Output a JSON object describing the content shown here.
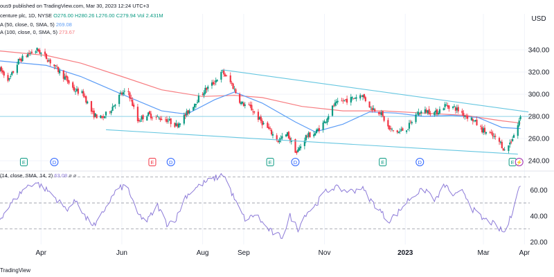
{
  "header": {
    "published_line": "ous9 published on TradingView.com, Mar 30, 2023 12:24 UTC+3",
    "symbol_line": "centure plc, 1D, NYSE",
    "ohlc": {
      "O": "O276.00",
      "H": "H280.26",
      "L": "L276.00",
      "C": "C279.94",
      "Vol": "Vol 2.431M"
    },
    "ma50_label": "A (50, close, 0, SMA, 5)",
    "ma50_value": "269.08",
    "ma100_label": "A (100, close, 0, SMA, 5)",
    "ma100_value": "273.67",
    "rsi_label": "(14, close, SMA, 14, 2)",
    "rsi_value": "63.08",
    "rsi_extra": "ø ø"
  },
  "footer": {
    "brand": "TradingView"
  },
  "colors": {
    "up": "#089981",
    "down": "#f23645",
    "ma50": "#5b9cf6",
    "ma100": "#f77c80",
    "channel": "#65c6e0",
    "rsi": "#8c7ad8",
    "grid": "#f0f3fa",
    "dash": "#9598a1"
  },
  "chart_data": [
    {
      "type": "candlestick",
      "ylabel": "USD",
      "ylim": [
        232,
        355
      ],
      "yticks": [
        240,
        260,
        280,
        300,
        320,
        340
      ],
      "y_tick_labels": [
        "240.00",
        "260.00",
        "280.00",
        "300.00",
        "320.00",
        "340.00"
      ],
      "x_tick_labels": [
        "Apr",
        "Jun",
        "Aug",
        "Sep",
        "Nov",
        "2023",
        "Mar",
        "Apr"
      ],
      "x_tick_positions": [
        "2022-04-01",
        "2022-06-01",
        "2022-08-01",
        "2022-09-01",
        "2022-11-01",
        "2023-01-01",
        "2023-03-01",
        "2023-04-01"
      ],
      "x_bold_labels": [
        "2023"
      ],
      "xlim": [
        "2022-03-01",
        "2023-04-05"
      ],
      "price_anchors": [
        [
          "2022-03-01",
          322
        ],
        [
          "2022-03-08",
          313
        ],
        [
          "2022-03-15",
          330
        ],
        [
          "2022-03-22",
          336
        ],
        [
          "2022-03-29",
          340
        ],
        [
          "2022-04-05",
          333
        ],
        [
          "2022-04-12",
          324
        ],
        [
          "2022-04-19",
          315
        ],
        [
          "2022-04-26",
          304
        ],
        [
          "2022-05-03",
          300
        ],
        [
          "2022-05-10",
          282
        ],
        [
          "2022-05-17",
          278
        ],
        [
          "2022-05-24",
          287
        ],
        [
          "2022-05-31",
          300
        ],
        [
          "2022-06-06",
          302
        ],
        [
          "2022-06-13",
          276
        ],
        [
          "2022-06-20",
          282
        ],
        [
          "2022-06-27",
          279
        ],
        [
          "2022-07-05",
          277
        ],
        [
          "2022-07-12",
          272
        ],
        [
          "2022-07-19",
          281
        ],
        [
          "2022-07-26",
          292
        ],
        [
          "2022-08-02",
          303
        ],
        [
          "2022-08-09",
          310
        ],
        [
          "2022-08-16",
          320
        ],
        [
          "2022-08-23",
          309
        ],
        [
          "2022-08-30",
          292
        ],
        [
          "2022-09-06",
          288
        ],
        [
          "2022-09-13",
          277
        ],
        [
          "2022-09-20",
          268
        ],
        [
          "2022-09-27",
          258
        ],
        [
          "2022-10-04",
          264
        ],
        [
          "2022-10-11",
          247
        ],
        [
          "2022-10-18",
          262
        ],
        [
          "2022-10-25",
          265
        ],
        [
          "2022-11-01",
          275
        ],
        [
          "2022-11-08",
          290
        ],
        [
          "2022-11-15",
          294
        ],
        [
          "2022-11-22",
          296
        ],
        [
          "2022-11-29",
          300
        ],
        [
          "2022-12-06",
          288
        ],
        [
          "2022-12-13",
          284
        ],
        [
          "2022-12-20",
          268
        ],
        [
          "2022-12-27",
          266
        ],
        [
          "2023-01-03",
          270
        ],
        [
          "2023-01-10",
          283
        ],
        [
          "2023-01-17",
          285
        ],
        [
          "2023-01-24",
          283
        ],
        [
          "2023-01-31",
          290
        ],
        [
          "2023-02-07",
          288
        ],
        [
          "2023-02-14",
          282
        ],
        [
          "2023-02-21",
          277
        ],
        [
          "2023-02-28",
          268
        ],
        [
          "2023-03-07",
          263
        ],
        [
          "2023-03-14",
          256
        ],
        [
          "2023-03-17",
          249
        ],
        [
          "2023-03-22",
          258
        ],
        [
          "2023-03-27",
          272
        ],
        [
          "2023-03-29",
          280
        ]
      ],
      "ma50_anchors": [
        [
          "2022-03-01",
          330
        ],
        [
          "2022-04-05",
          326
        ],
        [
          "2022-05-01",
          316
        ],
        [
          "2022-06-01",
          300
        ],
        [
          "2022-07-01",
          285
        ],
        [
          "2022-07-20",
          282
        ],
        [
          "2022-08-10",
          295
        ],
        [
          "2022-08-25",
          302
        ],
        [
          "2022-09-15",
          292
        ],
        [
          "2022-10-10",
          275
        ],
        [
          "2022-10-25",
          266
        ],
        [
          "2022-11-15",
          273
        ],
        [
          "2022-12-05",
          284
        ],
        [
          "2022-12-25",
          283
        ],
        [
          "2023-01-15",
          280
        ],
        [
          "2023-02-05",
          281
        ],
        [
          "2023-02-25",
          279
        ],
        [
          "2023-03-15",
          270
        ],
        [
          "2023-03-29",
          269
        ]
      ],
      "ma100_anchors": [
        [
          "2022-03-01",
          339
        ],
        [
          "2022-04-05",
          335
        ],
        [
          "2022-05-01",
          328
        ],
        [
          "2022-06-01",
          316
        ],
        [
          "2022-07-01",
          304
        ],
        [
          "2022-08-01",
          298
        ],
        [
          "2022-08-25",
          299
        ],
        [
          "2022-09-15",
          297
        ],
        [
          "2022-10-15",
          289
        ],
        [
          "2022-11-15",
          285
        ],
        [
          "2022-12-15",
          285
        ],
        [
          "2023-01-15",
          283
        ],
        [
          "2023-02-15",
          281
        ],
        [
          "2023-03-15",
          276
        ],
        [
          "2023-03-29",
          274
        ]
      ],
      "channel_upper": [
        [
          "2022-08-16",
          322
        ],
        [
          "2023-04-04",
          284
        ]
      ],
      "channel_lower": [
        [
          "2022-05-20",
          268
        ],
        [
          "2023-03-27",
          246
        ]
      ],
      "horizontal_line": 280,
      "events": [
        {
          "date": "2022-03-19",
          "label": "E",
          "kind": "earnings"
        },
        {
          "date": "2022-04-11",
          "label": "D",
          "kind": "dividend"
        },
        {
          "date": "2022-06-24",
          "label": "E",
          "kind": "earnings-miss"
        },
        {
          "date": "2022-07-08",
          "label": "D",
          "kind": "dividend"
        },
        {
          "date": "2022-09-21",
          "label": "E",
          "kind": "earnings"
        },
        {
          "date": "2022-10-10",
          "label": "D",
          "kind": "dividend"
        },
        {
          "date": "2022-12-15",
          "label": "E",
          "kind": "earnings"
        },
        {
          "date": "2023-01-12",
          "label": "D",
          "kind": "dividend"
        },
        {
          "date": "2023-03-23",
          "label": "E",
          "kind": "earnings"
        },
        {
          "date": "2023-03-28",
          "label": "⚡",
          "kind": "split"
        }
      ]
    },
    {
      "type": "line",
      "ylim": [
        18,
        73
      ],
      "yticks": [
        20,
        40,
        60
      ],
      "y_tick_labels": [
        "20.00",
        "40.00",
        "60.00"
      ],
      "bands": [
        30,
        50,
        70
      ],
      "rsi_anchors": [
        [
          "2022-03-01",
          38
        ],
        [
          "2022-03-10",
          50
        ],
        [
          "2022-03-20",
          62
        ],
        [
          "2022-03-28",
          66
        ],
        [
          "2022-04-08",
          58
        ],
        [
          "2022-04-20",
          45
        ],
        [
          "2022-04-28",
          52
        ],
        [
          "2022-05-05",
          38
        ],
        [
          "2022-05-12",
          32
        ],
        [
          "2022-05-20",
          47
        ],
        [
          "2022-05-28",
          60
        ],
        [
          "2022-06-05",
          64
        ],
        [
          "2022-06-12",
          42
        ],
        [
          "2022-06-20",
          36
        ],
        [
          "2022-06-28",
          48
        ],
        [
          "2022-07-05",
          34
        ],
        [
          "2022-07-12",
          38
        ],
        [
          "2022-07-19",
          55
        ],
        [
          "2022-07-26",
          61
        ],
        [
          "2022-08-03",
          66
        ],
        [
          "2022-08-10",
          69
        ],
        [
          "2022-08-17",
          72
        ],
        [
          "2022-08-22",
          60
        ],
        [
          "2022-08-28",
          46
        ],
        [
          "2022-09-03",
          36
        ],
        [
          "2022-09-10",
          42
        ],
        [
          "2022-09-17",
          32
        ],
        [
          "2022-09-24",
          26
        ],
        [
          "2022-09-30",
          24
        ],
        [
          "2022-10-06",
          40
        ],
        [
          "2022-10-12",
          30
        ],
        [
          "2022-10-18",
          42
        ],
        [
          "2022-10-25",
          48
        ],
        [
          "2022-11-01",
          58
        ],
        [
          "2022-11-08",
          62
        ],
        [
          "2022-11-15",
          60
        ],
        [
          "2022-11-22",
          59
        ],
        [
          "2022-11-29",
          62
        ],
        [
          "2022-12-06",
          52
        ],
        [
          "2022-12-13",
          44
        ],
        [
          "2022-12-19",
          36
        ],
        [
          "2022-12-26",
          42
        ],
        [
          "2023-01-03",
          52
        ],
        [
          "2023-01-10",
          58
        ],
        [
          "2023-01-17",
          60
        ],
        [
          "2023-01-24",
          52
        ],
        [
          "2023-01-31",
          64
        ],
        [
          "2023-02-07",
          55
        ],
        [
          "2023-02-14",
          59
        ],
        [
          "2023-02-21",
          45
        ],
        [
          "2023-02-28",
          38
        ],
        [
          "2023-03-07",
          35
        ],
        [
          "2023-03-13",
          30
        ],
        [
          "2023-03-17",
          27
        ],
        [
          "2023-03-22",
          40
        ],
        [
          "2023-03-26",
          58
        ],
        [
          "2023-03-29",
          63
        ]
      ]
    }
  ]
}
